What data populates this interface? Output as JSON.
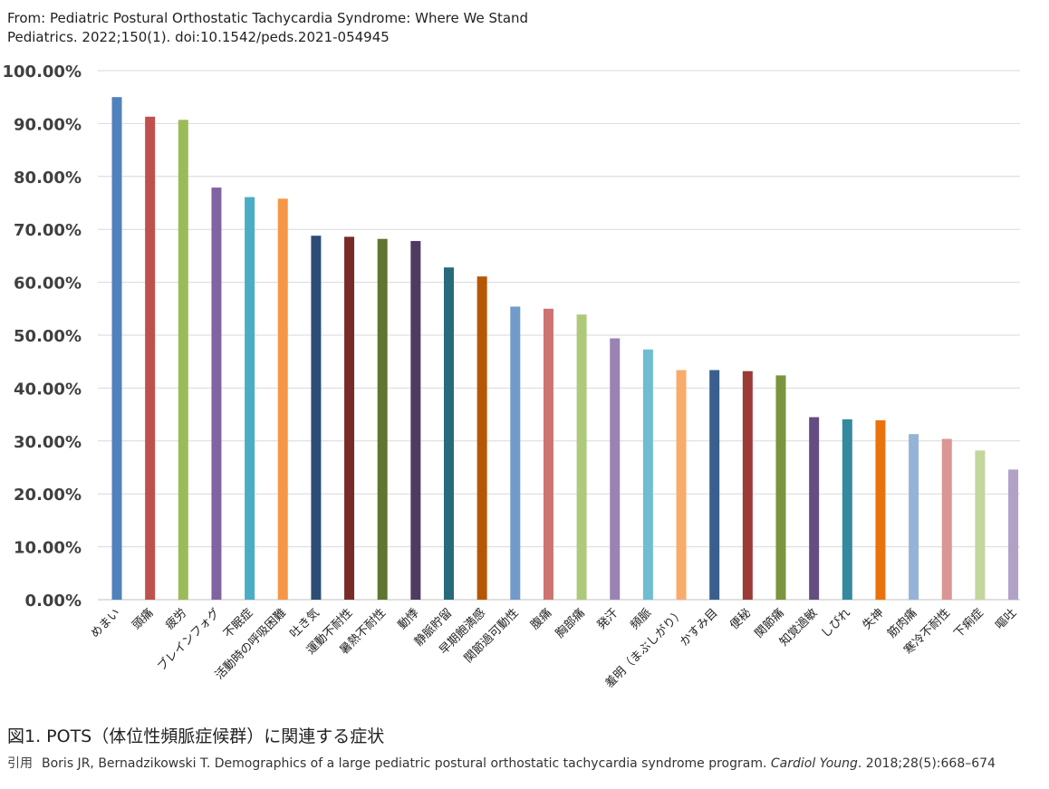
{
  "source": {
    "line1": "From: Pediatric Postural Orthostatic Tachycardia Syndrome: Where We Stand",
    "line2": "Pediatrics. 2022;150(1). doi:10.1542/peds.2021-054945"
  },
  "caption": "図1. POTS（体位性頻脈症候群）に関連する症状",
  "citation": {
    "label": "引用",
    "text_before": "Boris JR, Bernadzikowski T. Demographics of a large pediatric postural orthostatic tachycardia syndrome program. ",
    "journal": "Cardiol Young",
    "text_after": ". 2018;28(5):668–674"
  },
  "chart_data": {
    "type": "bar",
    "ylim": [
      0,
      100
    ],
    "y_ticks": [
      "0.00%",
      "10.00%",
      "20.00%",
      "30.00%",
      "40.00%",
      "50.00%",
      "60.00%",
      "70.00%",
      "80.00%",
      "90.00%",
      "100.00%"
    ],
    "grid": true,
    "categories": [
      "めまい",
      "頭痛",
      "疲労",
      "ブレインフォグ",
      "不眠症",
      "活動時の呼吸困難",
      "吐き気",
      "運動不耐性",
      "暑熱不耐性",
      "動悸",
      "静脈貯留",
      "早期飽満感",
      "関節過可動性",
      "腹痛",
      "胸部痛",
      "発汗",
      "頻脈",
      "羞明（まぶしがり）",
      "かすみ目",
      "便秘",
      "関節痛",
      "知覚過敏",
      "しびれ",
      "失神",
      "筋肉痛",
      "寒冷不耐性",
      "下痢症",
      "嘔吐"
    ],
    "values": [
      95.0,
      91.3,
      90.7,
      77.9,
      76.1,
      75.8,
      68.8,
      68.6,
      68.2,
      67.8,
      62.8,
      61.1,
      55.4,
      55.0,
      53.9,
      49.4,
      47.3,
      43.4,
      43.4,
      43.2,
      42.4,
      34.5,
      34.1,
      33.9,
      31.3,
      30.4,
      28.2,
      24.6
    ],
    "colors": [
      "#4f81bd",
      "#c0504d",
      "#9bbb59",
      "#8064a2",
      "#4bacc6",
      "#f79646",
      "#2c4d75",
      "#772c2a",
      "#5f7530",
      "#4d3b62",
      "#276a7c",
      "#b65708",
      "#729aca",
      "#cd7371",
      "#afc97a",
      "#9983b5",
      "#6fbdd1",
      "#f9ab6b",
      "#3a5f8e",
      "#9b3a37",
      "#7a953d",
      "#644d82",
      "#3489a0",
      "#e9720c",
      "#95b3d7",
      "#d99694",
      "#c3d69b",
      "#b2a1c7"
    ]
  }
}
